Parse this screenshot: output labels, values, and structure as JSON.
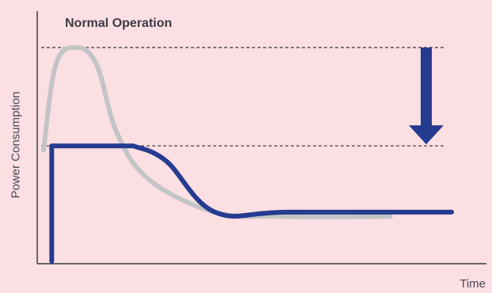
{
  "chart_data": {
    "type": "line",
    "title": "Normal Operation",
    "xlabel": "Time",
    "ylabel": "Power Consumption",
    "grid": false,
    "reference_lines": [
      {
        "y": 1.0,
        "style": "dashed"
      },
      {
        "y": 0.54,
        "style": "dashed"
      }
    ],
    "annotation": {
      "type": "arrow",
      "direction": "down",
      "from_y": 1.0,
      "to_y": 0.54
    },
    "series": [
      {
        "color": "#c4c4c6",
        "points": [
          [
            0,
            0.52
          ],
          [
            0.03,
            0.92
          ],
          [
            0.08,
            1.0
          ],
          [
            0.13,
            0.92
          ],
          [
            0.18,
            0.6
          ],
          [
            0.26,
            0.38
          ],
          [
            0.42,
            0.23
          ],
          [
            0.58,
            0.21
          ],
          [
            0.85,
            0.21
          ]
        ]
      },
      {
        "color": "#253b8f",
        "points": [
          [
            0.02,
            0.0
          ],
          [
            0.02,
            0.54
          ],
          [
            0.22,
            0.54
          ],
          [
            0.3,
            0.47
          ],
          [
            0.42,
            0.23
          ],
          [
            0.6,
            0.23
          ],
          [
            1.0,
            0.23
          ]
        ]
      }
    ],
    "xlim": [
      0,
      1
    ],
    "ylim": [
      -0.1,
      1.1
    ],
    "colors": {
      "background": "#fcdfe3",
      "axis": "#3c3c46",
      "arrow": "#253b8f"
    }
  }
}
